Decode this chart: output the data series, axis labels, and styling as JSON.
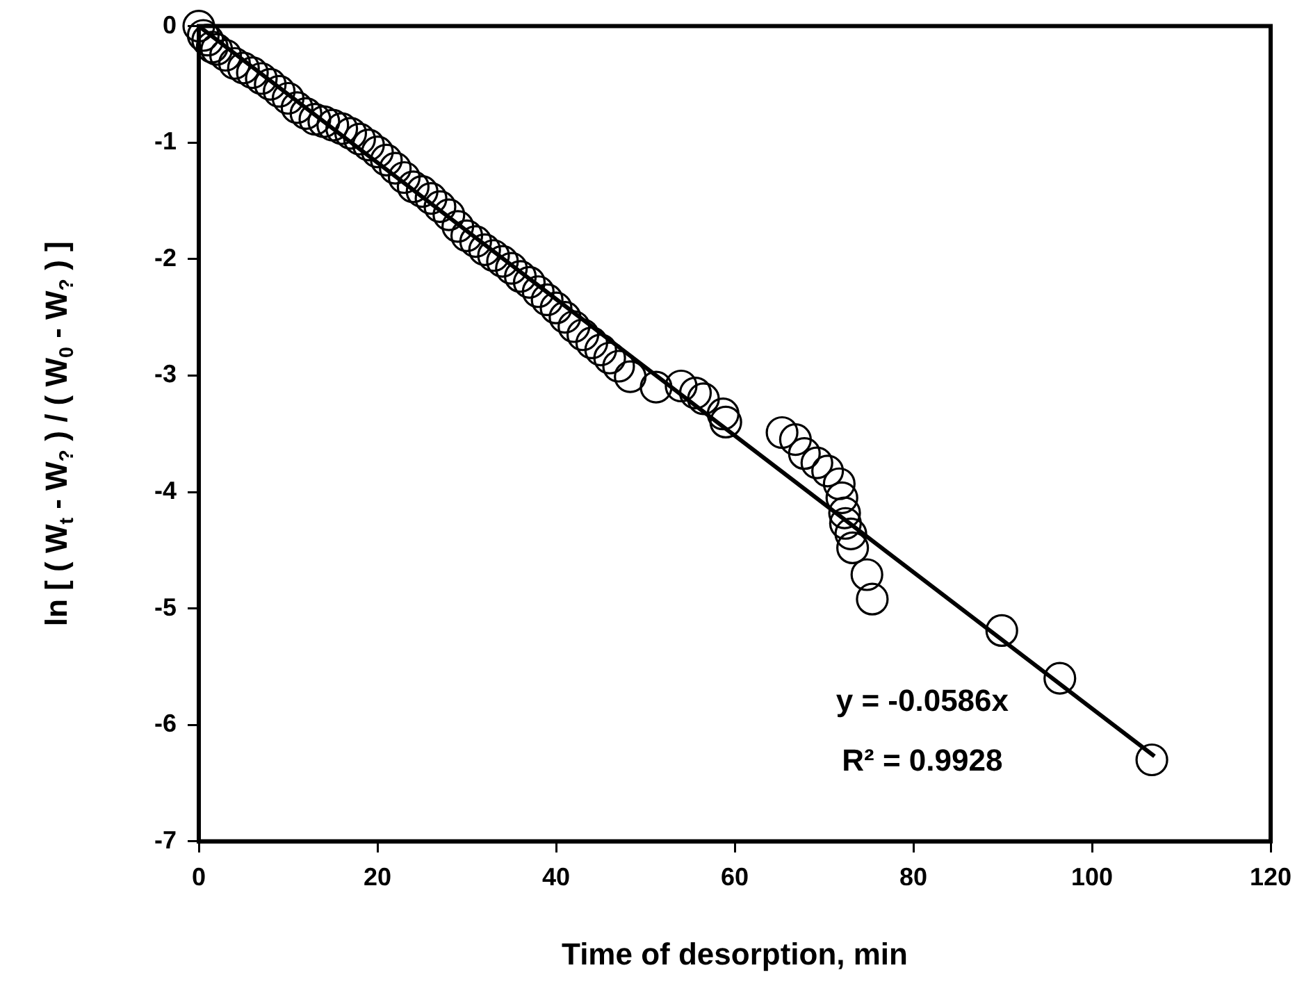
{
  "chart_data": {
    "type": "scatter",
    "xlabel": "Time of desorption, min",
    "ylabel": "ln [ ( W$_{t}$ - W$_{?}$ ) / ( W$_{0}$ - W$_{?}$ ) ]",
    "xlim": [
      0,
      120
    ],
    "xticks": [
      0,
      20,
      40,
      60,
      80,
      100,
      120
    ],
    "ylim": [
      -7,
      0
    ],
    "yticks": [
      0,
      -1,
      -2,
      -3,
      -4,
      -5,
      -6,
      -7
    ],
    "grid": false,
    "legend": false,
    "marker": "circle",
    "annotations": [
      "y = -0.0586x",
      "R² = 0.9928"
    ],
    "series": [
      {
        "type": "scatter",
        "color": "#000000",
        "x": [
          0,
          0.5,
          1,
          1.5,
          2,
          3,
          4,
          5,
          6,
          7,
          8,
          9,
          10,
          11,
          12,
          13,
          14,
          15,
          16,
          17,
          18,
          19,
          20,
          21,
          22,
          23,
          24,
          25,
          26,
          27,
          28,
          29,
          30,
          31,
          32,
          33,
          34,
          35,
          36,
          37,
          38,
          39,
          40,
          41,
          42,
          43,
          44,
          45,
          46,
          47,
          48.3,
          51.2,
          54,
          55.6,
          56.5,
          58.7,
          59,
          65.3,
          66.8,
          67.8,
          69.2,
          70.4,
          71.7,
          72,
          72.3,
          72.4,
          73,
          73.2,
          74.8,
          75.4,
          89.9,
          96.4,
          106.7
        ],
        "values": [
          0,
          -0.08,
          -0.12,
          -0.18,
          -0.2,
          -0.25,
          -0.32,
          -0.36,
          -0.4,
          -0.45,
          -0.5,
          -0.56,
          -0.62,
          -0.7,
          -0.75,
          -0.8,
          -0.82,
          -0.85,
          -0.88,
          -0.92,
          -0.97,
          -1.02,
          -1.08,
          -1.15,
          -1.22,
          -1.3,
          -1.38,
          -1.42,
          -1.48,
          -1.55,
          -1.62,
          -1.72,
          -1.8,
          -1.85,
          -1.92,
          -1.97,
          -2.02,
          -2.08,
          -2.15,
          -2.2,
          -2.28,
          -2.35,
          -2.42,
          -2.5,
          -2.58,
          -2.65,
          -2.72,
          -2.78,
          -2.85,
          -2.92,
          -3.01,
          -3.1,
          -3.09,
          -3.15,
          -3.2,
          -3.33,
          -3.4,
          -3.49,
          -3.55,
          -3.67,
          -3.75,
          -3.82,
          -3.93,
          -4.05,
          -4.18,
          -4.27,
          -4.36,
          -4.48,
          -4.71,
          -4.92,
          -5.19,
          -5.6,
          -6.3
        ]
      },
      {
        "type": "line",
        "color": "#000000",
        "marker": "none",
        "x": [
          0,
          107
        ],
        "values": [
          0,
          -6.27
        ]
      }
    ]
  }
}
